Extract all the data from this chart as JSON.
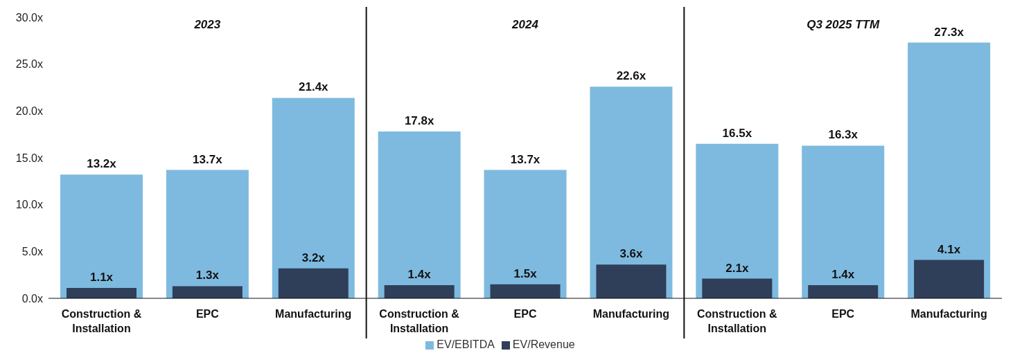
{
  "chart_data": {
    "type": "bar",
    "categories": [
      "Construction & Installation",
      "EPC",
      "Manufacturing",
      "Construction & Installation",
      "EPC",
      "Manufacturing",
      "Construction & Installation",
      "EPC",
      "Manufacturing"
    ],
    "series": [
      {
        "name": "EV/EBITDA",
        "color": "#7ebadf",
        "values": [
          13.2,
          13.7,
          21.4,
          17.8,
          13.7,
          22.6,
          16.5,
          16.3,
          27.3
        ],
        "value_labels": [
          "13.2x",
          "13.7x",
          "21.4x",
          "17.8x",
          "13.7x",
          "22.6x",
          "16.5x",
          "16.3x",
          "27.3x"
        ]
      },
      {
        "name": "EV/Revenue",
        "color": "#2f3e59",
        "values": [
          1.1,
          1.3,
          3.2,
          1.4,
          1.5,
          3.6,
          2.1,
          1.4,
          4.1
        ],
        "value_labels": [
          "1.1x",
          "1.3x",
          "3.2x",
          "1.4x",
          "1.5x",
          "3.6x",
          "2.1x",
          "1.4x",
          "4.1x"
        ]
      }
    ],
    "annotations": [
      "2023",
      "2024",
      "Q3 2025 TTM"
    ],
    "ylim": [
      0,
      30
    ],
    "yticks": [
      {
        "value": 0,
        "label": "0.0x"
      },
      {
        "value": 5,
        "label": "5.0x"
      },
      {
        "value": 10,
        "label": "10.0x"
      },
      {
        "value": 15,
        "label": "15.0x"
      },
      {
        "value": 20,
        "label": "20.0x"
      },
      {
        "value": 25,
        "label": "25.0x"
      },
      {
        "value": 30,
        "label": "30.0x"
      }
    ],
    "grid": false,
    "legend": "bottom"
  }
}
